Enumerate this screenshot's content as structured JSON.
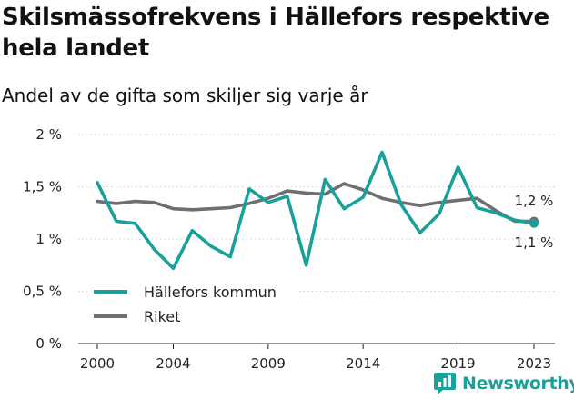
{
  "header": {
    "title": "Skilsmässofrekvens i Hällefors respektive hela landet",
    "subtitle": "Andel av de gifta som skiljer sig varje år"
  },
  "brand": {
    "name": "Newsworthy",
    "color": "#19a09a",
    "icon": "newsworthy-logo-icon"
  },
  "chart_data": {
    "type": "line",
    "title": "Skilsmässofrekvens i Hällefors respektive hela landet",
    "subtitle": "Andel av de gifta som skiljer sig varje år",
    "x": [
      2000,
      2001,
      2002,
      2003,
      2004,
      2005,
      2006,
      2007,
      2008,
      2009,
      2010,
      2011,
      2012,
      2013,
      2014,
      2015,
      2016,
      2017,
      2018,
      2019,
      2020,
      2021,
      2022,
      2023
    ],
    "x_ticks": [
      2000,
      2004,
      2009,
      2014,
      2019,
      2023
    ],
    "x_tick_labels": [
      "2000",
      "2004",
      "2009",
      "2014",
      "2019",
      "2023"
    ],
    "xlim": [
      2000,
      2023
    ],
    "y_ticks": [
      0,
      0.5,
      1,
      1.5,
      2
    ],
    "y_tick_labels": [
      "0 %",
      "0,5 %",
      "1 %",
      "1,5 %",
      "2 %"
    ],
    "ylim": [
      0,
      2
    ],
    "grid": "horizontal",
    "legend": "bottom-left",
    "series": [
      {
        "name": "Hällefors kommun",
        "color": "#19a09a",
        "values": [
          1.54,
          1.17,
          1.15,
          0.9,
          0.72,
          1.08,
          0.93,
          0.83,
          1.48,
          1.35,
          1.41,
          0.75,
          1.57,
          1.29,
          1.4,
          1.83,
          1.33,
          1.06,
          1.24,
          1.69,
          1.3,
          1.25,
          1.18,
          1.15
        ],
        "end_label": "1,1 %"
      },
      {
        "name": "Riket",
        "color": "#6f6f73",
        "values": [
          1.36,
          1.34,
          1.36,
          1.35,
          1.29,
          1.28,
          1.29,
          1.3,
          1.34,
          1.39,
          1.46,
          1.44,
          1.43,
          1.53,
          1.47,
          1.39,
          1.35,
          1.32,
          1.35,
          1.37,
          1.39,
          1.27,
          1.17,
          1.17
        ],
        "end_label": "1,2 %"
      }
    ]
  }
}
